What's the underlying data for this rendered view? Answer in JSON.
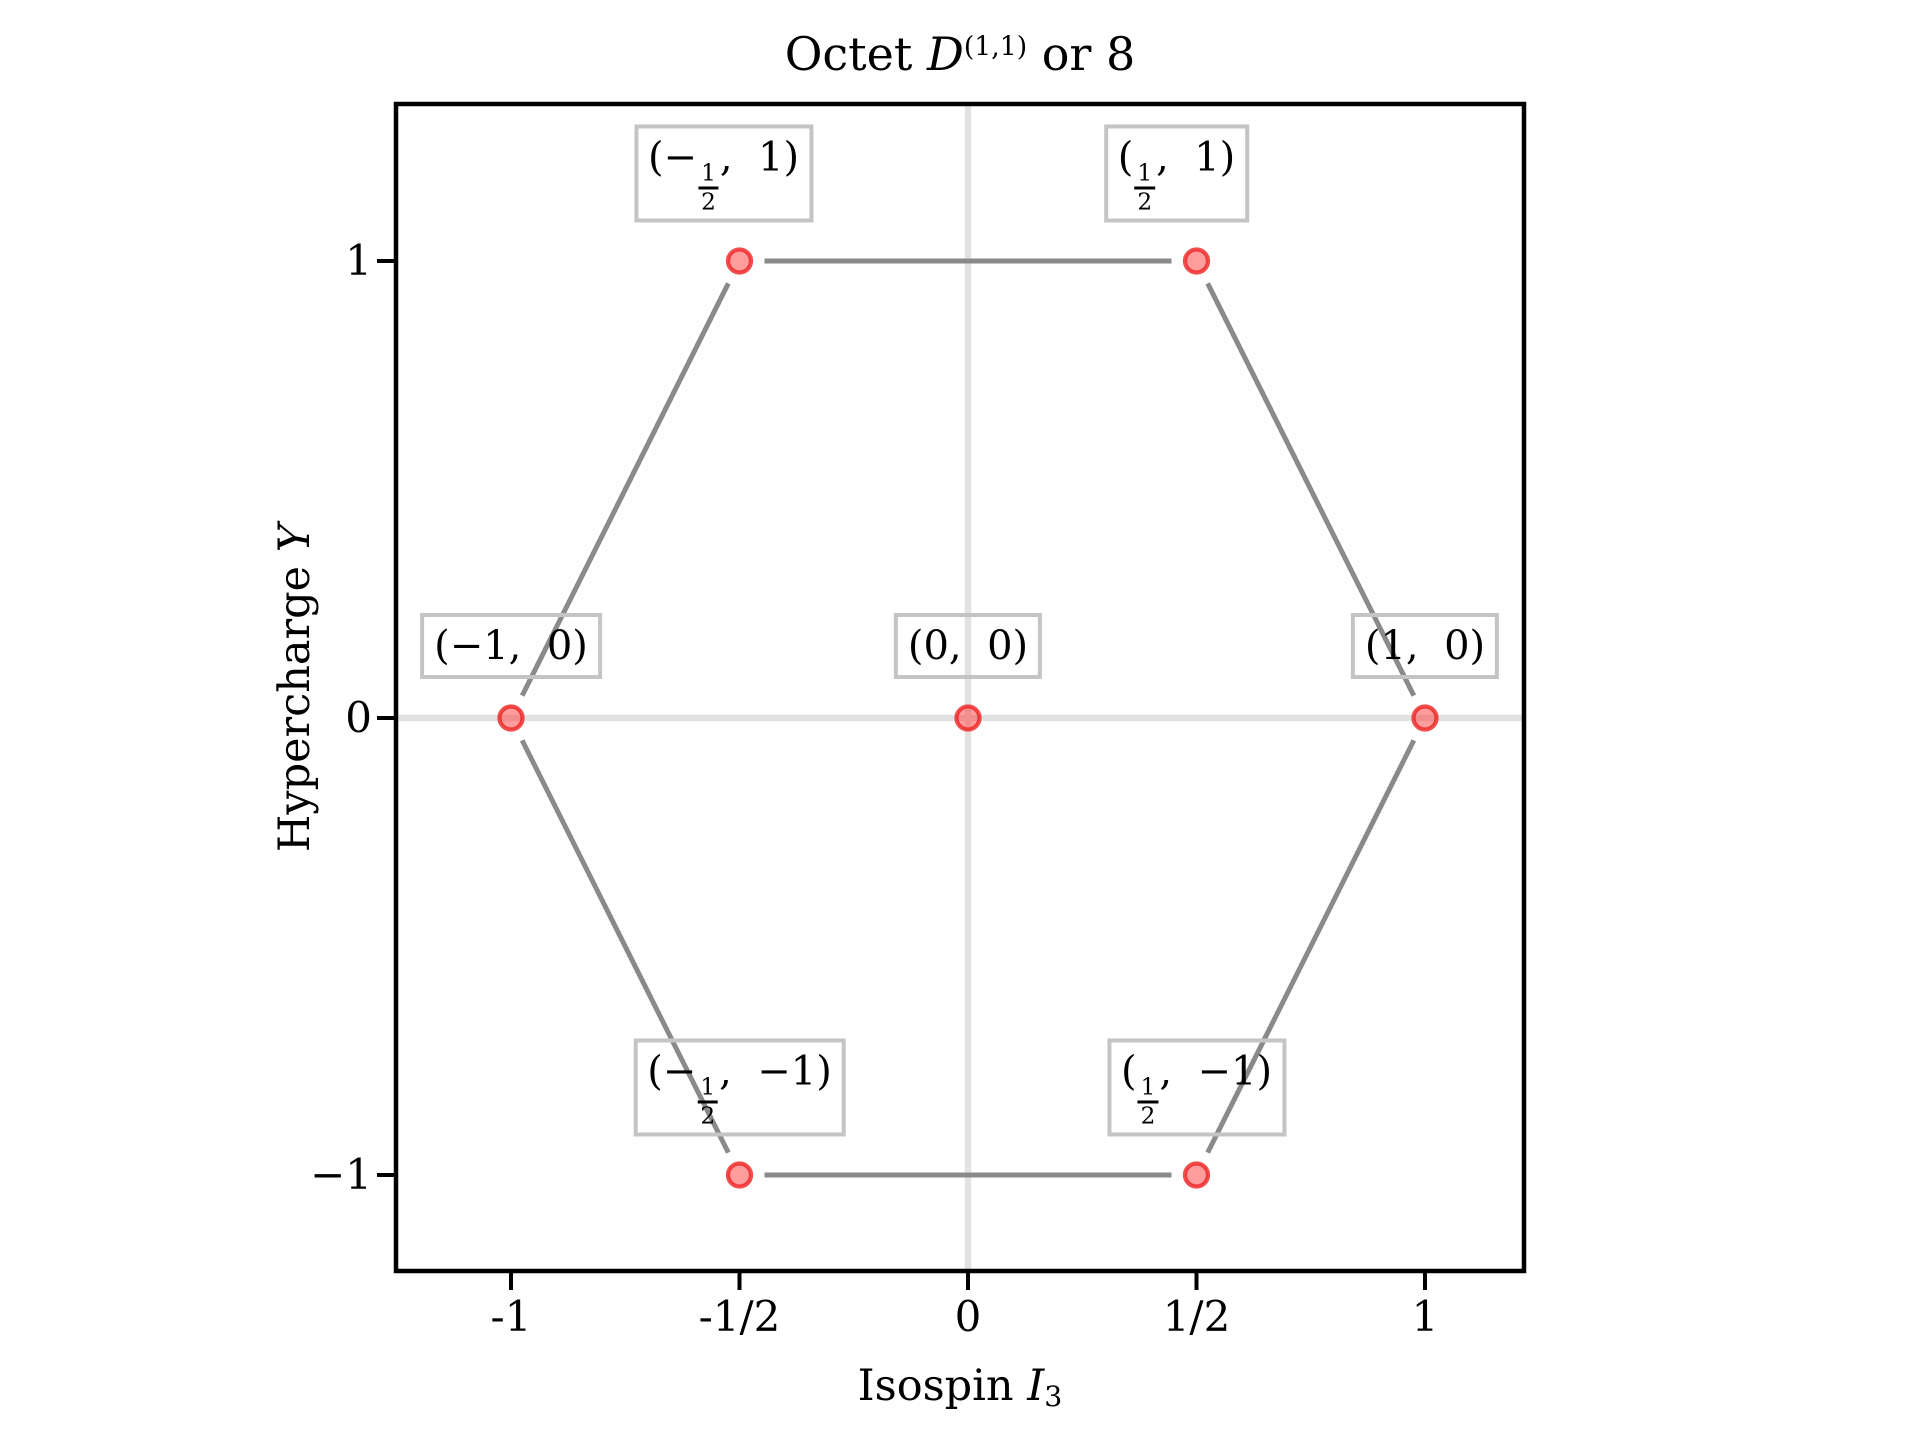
{
  "figure": {
    "background": "#ffffff",
    "title_parts": [
      {
        "text": "Octet "
      },
      {
        "text": "D",
        "style": "it"
      },
      {
        "text": "(1,1)",
        "style": "sup"
      },
      {
        "text": " or 8"
      }
    ]
  },
  "chart_data": {
    "type": "scatter",
    "title": "Octet D^(1,1) or 8",
    "xlabel": "Isospin I_3",
    "ylabel": "Hypercharge Y",
    "xlabel_parts": [
      {
        "text": "Isospin "
      },
      {
        "text": "I",
        "style": "it"
      },
      {
        "text": "3",
        "style": "sub"
      }
    ],
    "ylabel_parts": [
      {
        "text": "Hypercharge "
      },
      {
        "text": "Y",
        "style": "it"
      }
    ],
    "xlim": [
      -1.25,
      1.22
    ],
    "ylim": [
      -1.21,
      1.34
    ],
    "grid": false,
    "legend": "none",
    "x_ticks": [
      {
        "value": -1,
        "label": "-1"
      },
      {
        "value": -0.5,
        "label": "-1/2"
      },
      {
        "value": 0,
        "label": "0"
      },
      {
        "value": 0.5,
        "label": "1/2"
      },
      {
        "value": 1,
        "label": "1"
      }
    ],
    "y_ticks": [
      {
        "value": 1,
        "label": "1"
      },
      {
        "value": 0,
        "label": "0"
      },
      {
        "value": -1,
        "label": "−1"
      }
    ],
    "points": [
      {
        "x": -0.5,
        "y": 1,
        "label": "(−1/2, 1)",
        "label_dx": -16,
        "label_parts": [
          {
            "text": "(−"
          },
          {
            "num": "1",
            "den": "2"
          },
          {
            "text": ",  1)"
          }
        ]
      },
      {
        "x": 0.5,
        "y": 1,
        "label": "(1/2, 1)",
        "label_dx": -20,
        "label_parts": [
          {
            "text": "("
          },
          {
            "num": "1",
            "den": "2"
          },
          {
            "text": ",  1)"
          }
        ]
      },
      {
        "x": -1,
        "y": 0,
        "label": "(−1, 0)",
        "label_dx": 0,
        "label_parts": [
          {
            "text": "(−1,  0)"
          }
        ]
      },
      {
        "x": 0,
        "y": 0,
        "label": "(0, 0)",
        "label_dx": 0,
        "label_parts": [
          {
            "text": "(0,  0)"
          }
        ]
      },
      {
        "x": 1,
        "y": 0,
        "label": "(1, 0)",
        "label_dx": 0,
        "label_parts": [
          {
            "text": "(1,  0)"
          }
        ]
      },
      {
        "x": -0.5,
        "y": -1,
        "label": "(−1/2, −1)",
        "label_dx": 0,
        "label_parts": [
          {
            "text": "(−"
          },
          {
            "num": "1",
            "den": "2"
          },
          {
            "text": ",  −1)"
          }
        ]
      },
      {
        "x": 0.5,
        "y": -1,
        "label": "(1/2, −1)",
        "label_dx": 0,
        "label_parts": [
          {
            "text": "("
          },
          {
            "num": "1",
            "den": "2"
          },
          {
            "text": ",  −1)"
          }
        ]
      }
    ],
    "edges": [
      [
        0,
        1
      ],
      [
        1,
        4
      ],
      [
        4,
        6
      ],
      [
        6,
        5
      ],
      [
        5,
        2
      ],
      [
        2,
        0
      ]
    ],
    "colors": {
      "marker_fill": "rgba(255,60,60,0.5)",
      "marker_edge": "rgba(238,34,34,0.8)",
      "edge_line": "#8a8a8a",
      "axis_cross": "#e2e2e2",
      "label_box_border": "#c4c4c4",
      "spine": "#000000",
      "text": "#000000"
    }
  }
}
